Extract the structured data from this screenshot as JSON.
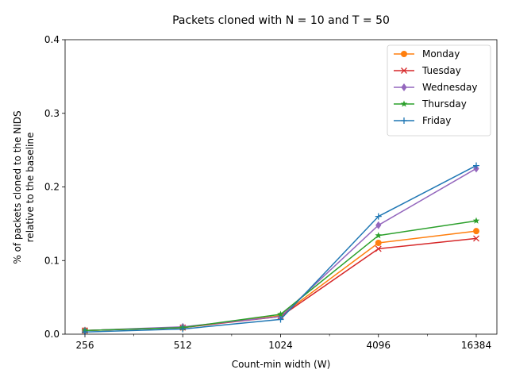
{
  "chart_data": {
    "type": "line",
    "title": "Packets cloned with N = 10 and T = 50",
    "xlabel": "Count-min width (W)",
    "ylabel_lines": [
      "% of packets cloned to the NIDS",
      "relative to the baseline"
    ],
    "categories": [
      "256",
      "512",
      "1024",
      "4096",
      "16384"
    ],
    "ylim": [
      0,
      0.4
    ],
    "yticks": [
      "0.0",
      "0.1",
      "0.2",
      "0.3",
      "0.4"
    ],
    "grid": false,
    "legend_position": "top-right",
    "series": [
      {
        "name": "Monday",
        "color": "#ff7f0e",
        "marker": "circle",
        "values": [
          0.005,
          0.009,
          0.025,
          0.124,
          0.14
        ]
      },
      {
        "name": "Tuesday",
        "color": "#d62728",
        "marker": "x",
        "values": [
          0.005,
          0.009,
          0.024,
          0.116,
          0.13
        ]
      },
      {
        "name": "Wednesday",
        "color": "#9467bd",
        "marker": "diamond",
        "values": [
          0.005,
          0.01,
          0.024,
          0.148,
          0.225
        ]
      },
      {
        "name": "Thursday",
        "color": "#2ca02c",
        "marker": "star",
        "values": [
          0.005,
          0.009,
          0.027,
          0.134,
          0.154
        ]
      },
      {
        "name": "Friday",
        "color": "#1f77b4",
        "marker": "plus",
        "values": [
          0.003,
          0.007,
          0.02,
          0.16,
          0.229
        ]
      }
    ]
  }
}
